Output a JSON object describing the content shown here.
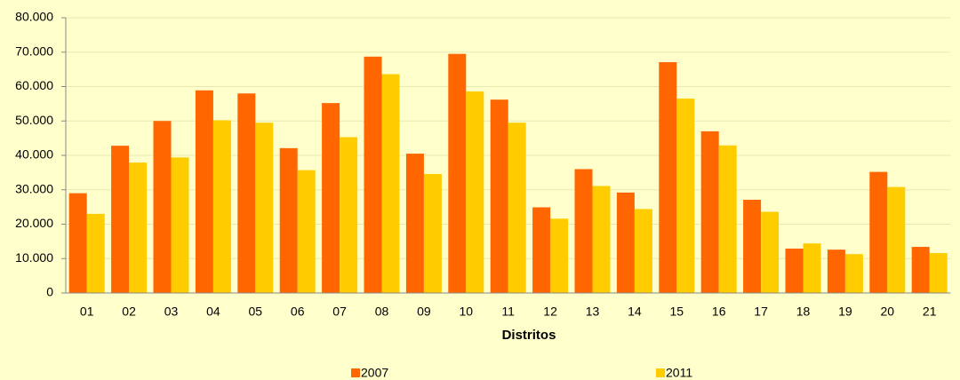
{
  "chart_data": {
    "type": "bar",
    "x_label": "Distritos",
    "categories": [
      "01",
      "02",
      "03",
      "04",
      "05",
      "06",
      "07",
      "08",
      "09",
      "10",
      "11",
      "12",
      "13",
      "14",
      "15",
      "16",
      "17",
      "18",
      "19",
      "20",
      "21"
    ],
    "series": [
      {
        "name": "2007",
        "color": "#ff6600",
        "values": [
          29000,
          42800,
          50000,
          58900,
          58000,
          42100,
          55200,
          68700,
          40500,
          69500,
          56200,
          24900,
          36000,
          29200,
          67100,
          47000,
          27100,
          12900,
          12600,
          35200,
          13400
        ]
      },
      {
        "name": "2011",
        "color": "#ffcc00",
        "values": [
          23000,
          37900,
          39400,
          50200,
          49500,
          35700,
          45300,
          63600,
          34600,
          58600,
          49500,
          21600,
          31100,
          24400,
          56500,
          42900,
          23600,
          14400,
          11300,
          30800,
          11600
        ]
      }
    ],
    "ylim": [
      0,
      80000
    ],
    "yticks": [
      {
        "value": 0,
        "label": "0"
      },
      {
        "value": 10000,
        "label": "10.000"
      },
      {
        "value": 20000,
        "label": "20.000"
      },
      {
        "value": 30000,
        "label": "30.000"
      },
      {
        "value": 40000,
        "label": "40.000"
      },
      {
        "value": 50000,
        "label": "50.000"
      },
      {
        "value": 60000,
        "label": "60.000"
      },
      {
        "value": 70000,
        "label": "70.000"
      },
      {
        "value": 80000,
        "label": "80.000"
      }
    ],
    "grid": true
  }
}
